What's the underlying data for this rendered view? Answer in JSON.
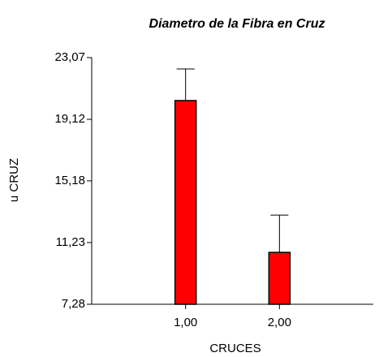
{
  "chart_data": {
    "type": "bar",
    "title": "Diametro de la Fibra en Cruz",
    "xlabel": "CRUCES",
    "ylabel": "u CRUZ",
    "categories": [
      "1,00",
      "2,00"
    ],
    "values": [
      20.32,
      10.6
    ],
    "errors": [
      2.02,
      2.39
    ],
    "color": "#ff0000",
    "ylim": [
      7.28,
      23.07
    ],
    "yticks": [
      {
        "value": 7.28,
        "label": "7,28"
      },
      {
        "value": 11.23,
        "label": "11,23"
      },
      {
        "value": 15.18,
        "label": "15,18"
      },
      {
        "value": 19.12,
        "label": "19,12"
      },
      {
        "value": 23.07,
        "label": "23,07"
      }
    ],
    "grid": false
  }
}
